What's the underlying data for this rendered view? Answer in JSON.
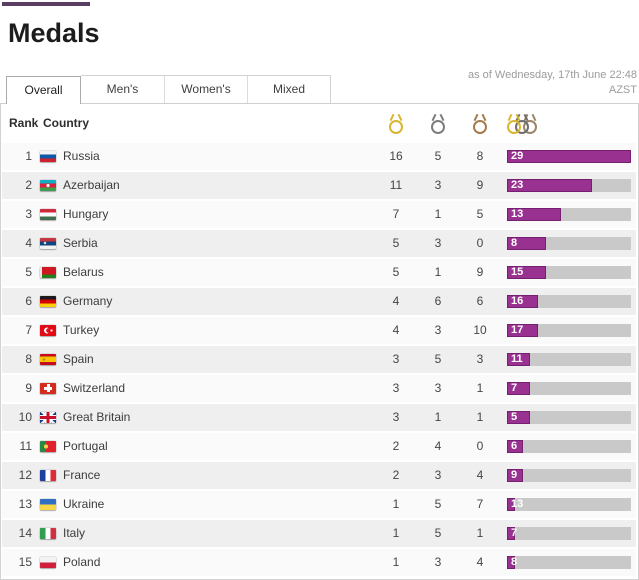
{
  "header": {
    "title": "Medals",
    "as_of_line1": "as of Wednesday, 17th June 22:48",
    "as_of_line2": "AZST"
  },
  "tabs": {
    "items": [
      {
        "label": "Overall",
        "active": true
      },
      {
        "label": "Men's",
        "active": false
      },
      {
        "label": "Women's",
        "active": false
      },
      {
        "label": "Mixed",
        "active": false
      }
    ]
  },
  "colors": {
    "accent_bar_fill": "#993191",
    "bar_track": "#c9c9c9",
    "gold": "#d8b62f",
    "silver": "#7d7d7d",
    "bronze": "#a57a4e",
    "top_accent": "#5a3f63"
  },
  "icons": {
    "gold": "gold-medal-icon",
    "silver": "silver-medal-icon",
    "bronze": "bronze-medal-icon",
    "total": "total-medals-icon"
  },
  "table": {
    "headers": {
      "rank": "Rank",
      "country": "Country"
    },
    "bar_note": "bar width proportional to gold count; label shows total",
    "rows": [
      {
        "rank": 1,
        "country": "Russia",
        "flag": "ru",
        "gold": 16,
        "silver": 5,
        "bronze": 8,
        "total": 29
      },
      {
        "rank": 2,
        "country": "Azerbaijan",
        "flag": "az",
        "gold": 11,
        "silver": 3,
        "bronze": 9,
        "total": 23
      },
      {
        "rank": 3,
        "country": "Hungary",
        "flag": "hu",
        "gold": 7,
        "silver": 1,
        "bronze": 5,
        "total": 13
      },
      {
        "rank": 4,
        "country": "Serbia",
        "flag": "rs",
        "gold": 5,
        "silver": 3,
        "bronze": 0,
        "total": 8
      },
      {
        "rank": 5,
        "country": "Belarus",
        "flag": "by",
        "gold": 5,
        "silver": 1,
        "bronze": 9,
        "total": 15
      },
      {
        "rank": 6,
        "country": "Germany",
        "flag": "de",
        "gold": 4,
        "silver": 6,
        "bronze": 6,
        "total": 16
      },
      {
        "rank": 7,
        "country": "Turkey",
        "flag": "tr",
        "gold": 4,
        "silver": 3,
        "bronze": 10,
        "total": 17
      },
      {
        "rank": 8,
        "country": "Spain",
        "flag": "es",
        "gold": 3,
        "silver": 5,
        "bronze": 3,
        "total": 11
      },
      {
        "rank": 9,
        "country": "Switzerland",
        "flag": "ch",
        "gold": 3,
        "silver": 3,
        "bronze": 1,
        "total": 7
      },
      {
        "rank": 10,
        "country": "Great Britain",
        "flag": "gb",
        "gold": 3,
        "silver": 1,
        "bronze": 1,
        "total": 5
      },
      {
        "rank": 11,
        "country": "Portugal",
        "flag": "pt",
        "gold": 2,
        "silver": 4,
        "bronze": 0,
        "total": 6
      },
      {
        "rank": 12,
        "country": "France",
        "flag": "fr",
        "gold": 2,
        "silver": 3,
        "bronze": 4,
        "total": 9
      },
      {
        "rank": 13,
        "country": "Ukraine",
        "flag": "ua",
        "gold": 1,
        "silver": 5,
        "bronze": 7,
        "total": 13
      },
      {
        "rank": 14,
        "country": "Italy",
        "flag": "it",
        "gold": 1,
        "silver": 5,
        "bronze": 1,
        "total": 7
      },
      {
        "rank": 15,
        "country": "Poland",
        "flag": "pl",
        "gold": 1,
        "silver": 3,
        "bronze": 4,
        "total": 8
      }
    ]
  }
}
